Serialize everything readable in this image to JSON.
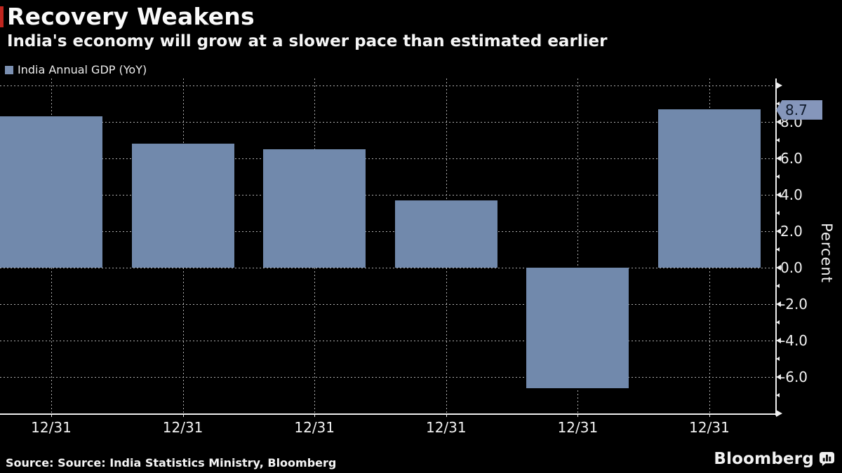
{
  "header": {
    "title": "Recovery Weakens",
    "subtitle": "India's economy will grow at a slower pace than estimated earlier",
    "accent_color": "#c0261f"
  },
  "legend": {
    "label": "India Annual GDP (YoY)",
    "swatch_color": "#7b90b2"
  },
  "chart_data": {
    "type": "bar",
    "categories": [
      "12/31",
      "12/31",
      "12/31",
      "12/31",
      "12/31",
      "12/31"
    ],
    "values": [
      8.3,
      6.8,
      6.5,
      3.7,
      -6.6,
      8.7
    ],
    "series_name": "India Annual GDP (YoY)",
    "title": "Recovery Weakens",
    "subtitle": "India's economy will grow at a slower pace than estimated earlier",
    "xlabel": "",
    "ylabel": "Percent",
    "ylim": [
      -8,
      10
    ],
    "ytick_interval": 2,
    "ytick_minor_interval": 1,
    "ytick_labels": [
      "-6.0",
      "-4.0",
      "-2.0",
      "0.0",
      "2.0",
      "4.0",
      "6.0",
      "8.0"
    ],
    "grid": true,
    "legend_position": "top-left",
    "yaxis_side": "right",
    "bar_color": "#7189ac",
    "axis_color": "#efefef",
    "grid_color": "#cdcdcd",
    "background_color": "#000000",
    "last_point_tag": {
      "text": "8.7",
      "bg_color": "#8596bb",
      "text_color": "#101b2d"
    }
  },
  "footer": {
    "source": "Source: Source: India Statistics Ministry, Bloomberg",
    "brand": "Bloomberg"
  }
}
